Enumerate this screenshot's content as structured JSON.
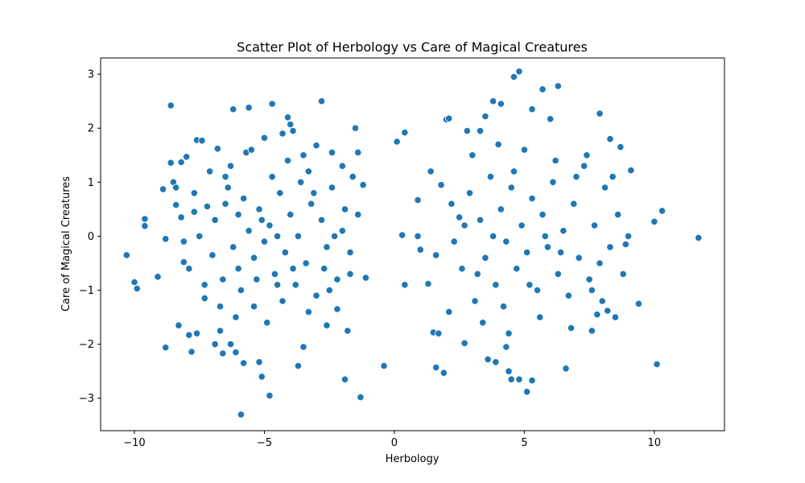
{
  "chart_data": {
    "type": "scatter",
    "title": "Scatter Plot of Herbology vs Care of Magical Creatures",
    "xlabel": "Herbology",
    "ylabel": "Care of Magical Creatures",
    "xlim": [
      -11.3,
      12.7
    ],
    "ylim": [
      -3.6,
      3.3
    ],
    "x_ticks": [
      -10,
      -5,
      0,
      5,
      10
    ],
    "x_tick_labels": [
      "−10",
      "−5",
      "0",
      "5",
      "10"
    ],
    "y_ticks": [
      -3,
      -2,
      -1,
      0,
      1,
      2,
      3
    ],
    "y_tick_labels": [
      "−3",
      "−2",
      "−1",
      "0",
      "1",
      "2",
      "3"
    ],
    "grid": false,
    "legend": false,
    "colors": {
      "point": "#1f77b4",
      "point_edge": "#ffffff"
    },
    "series": [
      {
        "values": [
          {
            "x": -10.3,
            "y": -0.35
          },
          {
            "x": -10.0,
            "y": -0.85
          },
          {
            "x": -9.9,
            "y": -0.97
          },
          {
            "x": -9.6,
            "y": 0.32
          },
          {
            "x": -9.6,
            "y": 0.19
          },
          {
            "x": -9.1,
            "y": -0.75
          },
          {
            "x": -8.9,
            "y": 0.87
          },
          {
            "x": -8.8,
            "y": -0.05
          },
          {
            "x": -8.8,
            "y": -2.06
          },
          {
            "x": -8.6,
            "y": 2.42
          },
          {
            "x": -8.6,
            "y": 1.36
          },
          {
            "x": -8.5,
            "y": 1.0
          },
          {
            "x": -8.4,
            "y": 0.58
          },
          {
            "x": -8.3,
            "y": -1.65
          },
          {
            "x": -8.2,
            "y": 1.37
          },
          {
            "x": -8.2,
            "y": 0.35
          },
          {
            "x": -8.1,
            "y": -0.48
          },
          {
            "x": -8.0,
            "y": 1.47
          },
          {
            "x": -7.9,
            "y": -1.83
          },
          {
            "x": -7.8,
            "y": -2.14
          },
          {
            "x": -7.7,
            "y": 0.45
          },
          {
            "x": -7.6,
            "y": 1.78
          },
          {
            "x": -7.6,
            "y": -1.8
          },
          {
            "x": -7.4,
            "y": 1.77
          },
          {
            "x": -7.3,
            "y": -1.15
          },
          {
            "x": -7.2,
            "y": 0.55
          },
          {
            "x": -7.0,
            "y": -0.35
          },
          {
            "x": -6.9,
            "y": -2.0
          },
          {
            "x": -6.8,
            "y": 1.62
          },
          {
            "x": -6.7,
            "y": -1.75
          },
          {
            "x": -6.6,
            "y": -2.17
          },
          {
            "x": -6.5,
            "y": 1.1
          },
          {
            "x": -6.3,
            "y": -2.0
          },
          {
            "x": -6.2,
            "y": 2.35
          },
          {
            "x": -6.1,
            "y": -2.15
          },
          {
            "x": -6.0,
            "y": 0.4
          },
          {
            "x": -5.9,
            "y": -3.3
          },
          {
            "x": -5.8,
            "y": -2.35
          },
          {
            "x": -5.7,
            "y": 1.55
          },
          {
            "x": -5.6,
            "y": 2.38
          },
          {
            "x": -5.4,
            "y": -1.3
          },
          {
            "x": -5.2,
            "y": -2.33
          },
          {
            "x": -5.1,
            "y": -2.6
          },
          {
            "x": -5.0,
            "y": 1.82
          },
          {
            "x": -4.8,
            "y": -2.95
          },
          {
            "x": -4.7,
            "y": 2.45
          },
          {
            "x": -4.5,
            "y": -0.9
          },
          {
            "x": -4.3,
            "y": 1.9
          },
          {
            "x": -4.1,
            "y": 2.2
          },
          {
            "x": -4.0,
            "y": 2.07
          },
          {
            "x": -3.9,
            "y": 1.95
          },
          {
            "x": -3.7,
            "y": -2.4
          },
          {
            "x": -3.5,
            "y": -2.05
          },
          {
            "x": -3.3,
            "y": 1.2
          },
          {
            "x": -3.0,
            "y": 1.68
          },
          {
            "x": -2.8,
            "y": 2.5
          },
          {
            "x": -2.6,
            "y": -1.65
          },
          {
            "x": -2.4,
            "y": 1.55
          },
          {
            "x": -2.2,
            "y": -1.35
          },
          {
            "x": -2.0,
            "y": 1.3
          },
          {
            "x": -1.9,
            "y": -2.65
          },
          {
            "x": -1.8,
            "y": -1.75
          },
          {
            "x": -1.7,
            "y": -0.7
          },
          {
            "x": -1.6,
            "y": 1.1
          },
          {
            "x": -1.5,
            "y": 2.0
          },
          {
            "x": -1.4,
            "y": 1.55
          },
          {
            "x": -1.3,
            "y": -2.98
          },
          {
            "x": -1.2,
            "y": 0.95
          },
          {
            "x": -1.1,
            "y": -0.77
          },
          {
            "x": -1.4,
            "y": 0.4
          },
          {
            "x": -6.9,
            "y": 0.3
          },
          {
            "x": -6.6,
            "y": -0.8
          },
          {
            "x": -6.4,
            "y": 0.9
          },
          {
            "x": -6.2,
            "y": -0.2
          },
          {
            "x": -6.0,
            "y": -0.6
          },
          {
            "x": -5.8,
            "y": 0.7
          },
          {
            "x": -5.6,
            "y": 0.1
          },
          {
            "x": -5.4,
            "y": -0.4
          },
          {
            "x": -5.2,
            "y": 0.5
          },
          {
            "x": -5.0,
            "y": -0.1
          },
          {
            "x": -4.8,
            "y": 0.2
          },
          {
            "x": -4.6,
            "y": -0.7
          },
          {
            "x": -4.4,
            "y": 0.8
          },
          {
            "x": -4.2,
            "y": -0.3
          },
          {
            "x": -4.0,
            "y": 0.4
          },
          {
            "x": -3.8,
            "y": -0.9
          },
          {
            "x": -3.6,
            "y": 1.0
          },
          {
            "x": -3.4,
            "y": -0.5
          },
          {
            "x": -3.2,
            "y": 0.6
          },
          {
            "x": -3.0,
            "y": -1.1
          },
          {
            "x": -2.8,
            "y": 0.3
          },
          {
            "x": -2.6,
            "y": -0.2
          },
          {
            "x": -2.4,
            "y": 0.9
          },
          {
            "x": -2.2,
            "y": -0.8
          },
          {
            "x": -2.0,
            "y": 0.1
          },
          {
            "x": -7.5,
            "y": 0.0
          },
          {
            "x": -7.1,
            "y": 1.2
          },
          {
            "x": -6.7,
            "y": -1.3
          },
          {
            "x": -5.5,
            "y": 1.6
          },
          {
            "x": -4.9,
            "y": -1.6
          },
          {
            "x": -4.1,
            "y": 1.4
          },
          {
            "x": -3.3,
            "y": -1.4
          },
          {
            "x": -2.7,
            "y": -0.6
          },
          {
            "x": -7.9,
            "y": -0.6
          },
          {
            "x": -8.4,
            "y": 0.9
          },
          {
            "x": -6.3,
            "y": 1.3
          },
          {
            "x": -5.9,
            "y": -1.0
          },
          {
            "x": -5.3,
            "y": -0.8
          },
          {
            "x": -4.7,
            "y": 1.1
          },
          {
            "x": -4.3,
            "y": -1.2
          },
          {
            "x": -3.7,
            "y": 0.0
          },
          {
            "x": -3.1,
            "y": 0.8
          },
          {
            "x": -2.5,
            "y": -1.0
          },
          {
            "x": -1.9,
            "y": 0.5
          },
          {
            "x": -1.7,
            "y": -0.3
          },
          {
            "x": -7.3,
            "y": -0.9
          },
          {
            "x": -6.5,
            "y": 0.6
          },
          {
            "x": -5.1,
            "y": 0.3
          },
          {
            "x": -4.5,
            "y": 0.0
          },
          {
            "x": -3.9,
            "y": -0.6
          },
          {
            "x": -8.1,
            "y": -0.1
          },
          {
            "x": -7.7,
            "y": 0.8
          },
          {
            "x": -6.1,
            "y": -1.5
          },
          {
            "x": -3.5,
            "y": 1.5
          },
          {
            "x": -2.3,
            "y": 0.0
          },
          {
            "x": 1.6,
            "y": -0.35
          },
          {
            "x": -0.4,
            "y": -2.4
          },
          {
            "x": 0.1,
            "y": 1.75
          },
          {
            "x": 0.3,
            "y": 0.02
          },
          {
            "x": 0.4,
            "y": -0.9
          },
          {
            "x": 0.4,
            "y": 1.92
          },
          {
            "x": 0.9,
            "y": 0.0
          },
          {
            "x": 0.9,
            "y": 0.67
          },
          {
            "x": 1.0,
            "y": -0.25
          },
          {
            "x": 1.3,
            "y": -0.88
          },
          {
            "x": 1.4,
            "y": 1.2
          },
          {
            "x": 1.5,
            "y": -1.78
          },
          {
            "x": 1.6,
            "y": -2.43
          },
          {
            "x": 1.7,
            "y": -1.8
          },
          {
            "x": 1.8,
            "y": 0.95
          },
          {
            "x": 1.9,
            "y": -2.53
          },
          {
            "x": 2.0,
            "y": 2.16
          },
          {
            "x": 2.1,
            "y": -1.4
          },
          {
            "x": 2.1,
            "y": 2.18
          },
          {
            "x": 2.5,
            "y": 0.35
          },
          {
            "x": 2.7,
            "y": -1.98
          },
          {
            "x": 2.8,
            "y": 1.95
          },
          {
            "x": 3.3,
            "y": 1.95
          },
          {
            "x": 3.5,
            "y": 2.22
          },
          {
            "x": 3.6,
            "y": -2.28
          },
          {
            "x": 3.8,
            "y": 2.5
          },
          {
            "x": 3.9,
            "y": -2.33
          },
          {
            "x": 4.1,
            "y": 2.45
          },
          {
            "x": 4.3,
            "y": -2.05
          },
          {
            "x": 4.4,
            "y": -2.5
          },
          {
            "x": 4.5,
            "y": -2.65
          },
          {
            "x": 4.6,
            "y": 2.95
          },
          {
            "x": 4.8,
            "y": -2.65
          },
          {
            "x": 4.8,
            "y": 3.05
          },
          {
            "x": 5.1,
            "y": -2.88
          },
          {
            "x": 5.3,
            "y": 2.35
          },
          {
            "x": 5.3,
            "y": -2.67
          },
          {
            "x": 5.7,
            "y": 2.72
          },
          {
            "x": 6.0,
            "y": 2.17
          },
          {
            "x": 6.3,
            "y": 2.78
          },
          {
            "x": 6.6,
            "y": -2.45
          },
          {
            "x": 7.6,
            "y": -1.75
          },
          {
            "x": 7.8,
            "y": -1.45
          },
          {
            "x": 7.9,
            "y": 2.27
          },
          {
            "x": 8.2,
            "y": -1.38
          },
          {
            "x": 8.3,
            "y": 1.8
          },
          {
            "x": 8.5,
            "y": -1.5
          },
          {
            "x": 8.7,
            "y": 1.65
          },
          {
            "x": 8.9,
            "y": -0.15
          },
          {
            "x": 9.1,
            "y": 1.22
          },
          {
            "x": 9.4,
            "y": -1.25
          },
          {
            "x": 10.0,
            "y": 0.27
          },
          {
            "x": 10.1,
            "y": -2.37
          },
          {
            "x": 10.3,
            "y": 0.47
          },
          {
            "x": 11.7,
            "y": -0.03
          },
          {
            "x": 2.6,
            "y": -0.6
          },
          {
            "x": 2.9,
            "y": 0.8
          },
          {
            "x": 3.1,
            "y": -1.2
          },
          {
            "x": 3.3,
            "y": 0.3
          },
          {
            "x": 3.5,
            "y": -0.4
          },
          {
            "x": 3.7,
            "y": 1.1
          },
          {
            "x": 3.9,
            "y": -0.9
          },
          {
            "x": 4.1,
            "y": 0.5
          },
          {
            "x": 4.3,
            "y": -0.1
          },
          {
            "x": 4.5,
            "y": 0.9
          },
          {
            "x": 4.7,
            "y": -0.6
          },
          {
            "x": 4.9,
            "y": 0.2
          },
          {
            "x": 5.1,
            "y": -0.3
          },
          {
            "x": 5.3,
            "y": 0.7
          },
          {
            "x": 5.5,
            "y": -1.0
          },
          {
            "x": 5.7,
            "y": 0.4
          },
          {
            "x": 5.9,
            "y": -0.2
          },
          {
            "x": 6.1,
            "y": 1.0
          },
          {
            "x": 6.3,
            "y": -0.7
          },
          {
            "x": 6.5,
            "y": 0.1
          },
          {
            "x": 6.7,
            "y": -1.1
          },
          {
            "x": 6.9,
            "y": 0.6
          },
          {
            "x": 7.1,
            "y": -0.4
          },
          {
            "x": 7.3,
            "y": 1.3
          },
          {
            "x": 7.5,
            "y": -0.8
          },
          {
            "x": 7.7,
            "y": 0.2
          },
          {
            "x": 7.9,
            "y": -0.5
          },
          {
            "x": 8.1,
            "y": 0.9
          },
          {
            "x": 8.3,
            "y": -0.2
          },
          {
            "x": 8.6,
            "y": 0.4
          },
          {
            "x": 3.0,
            "y": 1.5
          },
          {
            "x": 3.4,
            "y": -1.6
          },
          {
            "x": 4.0,
            "y": 1.7
          },
          {
            "x": 4.4,
            "y": -1.8
          },
          {
            "x": 5.0,
            "y": 1.6
          },
          {
            "x": 5.6,
            "y": -1.5
          },
          {
            "x": 6.2,
            "y": 1.4
          },
          {
            "x": 6.8,
            "y": -1.7
          },
          {
            "x": 7.4,
            "y": 1.5
          },
          {
            "x": 8.0,
            "y": -1.2
          },
          {
            "x": 2.3,
            "y": -0.1
          },
          {
            "x": 2.7,
            "y": 0.2
          },
          {
            "x": 3.2,
            "y": -0.7
          },
          {
            "x": 3.8,
            "y": 0.0
          },
          {
            "x": 4.2,
            "y": -1.3
          },
          {
            "x": 4.6,
            "y": 1.2
          },
          {
            "x": 5.2,
            "y": -0.9
          },
          {
            "x": 5.8,
            "y": 0.0
          },
          {
            "x": 6.4,
            "y": -0.3
          },
          {
            "x": 7.0,
            "y": 1.1
          },
          {
            "x": 7.6,
            "y": -1.0
          },
          {
            "x": 8.4,
            "y": 1.1
          },
          {
            "x": 8.8,
            "y": -0.7
          },
          {
            "x": 9.0,
            "y": 0.0
          },
          {
            "x": 2.2,
            "y": 0.6
          }
        ]
      }
    ]
  }
}
